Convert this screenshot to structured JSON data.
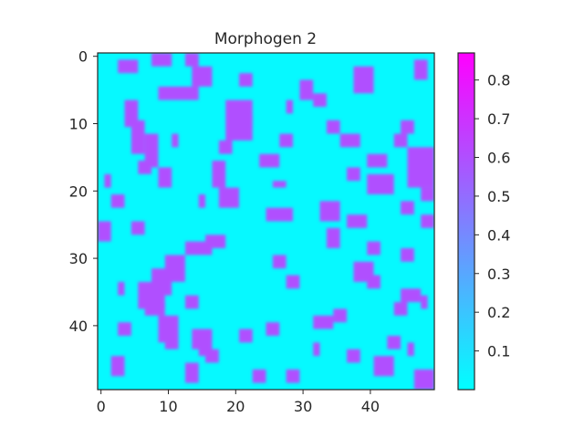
{
  "chart_data": {
    "type": "heatmap",
    "title": "Morphogen 2",
    "xlabel": "",
    "ylabel": "",
    "grid_size": [
      50,
      50
    ],
    "x_ticks": [
      0,
      10,
      20,
      30,
      40
    ],
    "y_ticks": [
      0,
      10,
      20,
      30,
      40
    ],
    "xlim": [
      -0.5,
      49.5
    ],
    "ylim": [
      49.5,
      -0.5
    ],
    "y_axis_inverted": true,
    "grid": false,
    "colormap": "cool",
    "colormap_endpoints": [
      "#00ffff",
      "#ff00ff"
    ],
    "value_range": [
      0.0,
      0.87
    ],
    "low_value": 0.02,
    "high_value": 0.6,
    "colorbar_ticks": [
      "0.1",
      "0.2",
      "0.3",
      "0.4",
      "0.5",
      "0.6",
      "0.7",
      "0.8"
    ],
    "colorbar_tick_values": [
      0.1,
      0.2,
      0.3,
      0.4,
      0.5,
      0.6,
      0.7,
      0.8
    ],
    "high_regions_approx": [
      [
        0,
        8,
        2,
        3
      ],
      [
        0,
        13,
        2,
        2
      ],
      [
        1,
        3,
        2,
        3
      ],
      [
        5,
        9,
        2,
        6
      ],
      [
        2,
        14,
        3,
        3
      ],
      [
        7,
        28,
        2,
        1
      ],
      [
        9,
        20,
        2,
        3
      ],
      [
        4,
        30,
        3,
        2
      ],
      [
        2,
        38,
        4,
        3
      ],
      [
        1,
        47,
        3,
        2
      ],
      [
        6,
        32,
        2,
        2
      ],
      [
        7,
        4,
        4,
        2
      ],
      [
        10,
        5,
        5,
        2
      ],
      [
        12,
        7,
        5,
        2
      ],
      [
        12,
        11,
        2,
        1
      ],
      [
        16,
        6,
        2,
        2
      ],
      [
        7,
        19,
        6,
        4
      ],
      [
        13,
        18,
        2,
        2
      ],
      [
        15,
        24,
        2,
        3
      ],
      [
        12,
        27,
        2,
        2
      ],
      [
        10,
        34,
        2,
        2
      ],
      [
        12,
        36,
        2,
        3
      ],
      [
        15,
        40,
        2,
        3
      ],
      [
        18,
        40,
        3,
        4
      ],
      [
        14,
        46,
        6,
        4
      ],
      [
        17,
        9,
        3,
        2
      ],
      [
        16,
        17,
        4,
        2
      ],
      [
        20,
        18,
        3,
        3
      ],
      [
        21,
        15,
        2,
        1
      ],
      [
        23,
        25,
        2,
        4
      ],
      [
        22,
        33,
        3,
        3
      ],
      [
        26,
        34,
        3,
        2
      ],
      [
        24,
        37,
        2,
        3
      ],
      [
        22,
        45,
        2,
        2
      ],
      [
        24,
        48,
        2,
        2
      ],
      [
        25,
        0,
        3,
        2
      ],
      [
        25,
        5,
        2,
        2
      ],
      [
        27,
        16,
        2,
        3
      ],
      [
        28,
        13,
        2,
        4
      ],
      [
        30,
        10,
        4,
        3
      ],
      [
        32,
        8,
        4,
        3
      ],
      [
        34,
        6,
        4,
        4
      ],
      [
        37,
        7,
        2,
        3
      ],
      [
        34,
        3,
        2,
        1
      ],
      [
        36,
        13,
        2,
        2
      ],
      [
        39,
        9,
        4,
        3
      ],
      [
        42,
        10,
        2,
        2
      ],
      [
        41,
        14,
        3,
        3
      ],
      [
        43,
        15,
        2,
        2
      ],
      [
        41,
        21,
        2,
        2
      ],
      [
        40,
        25,
        2,
        2
      ],
      [
        30,
        26,
        2,
        2
      ],
      [
        31,
        38,
        3,
        3
      ],
      [
        33,
        40,
        2,
        2
      ],
      [
        35,
        45,
        2,
        3
      ],
      [
        37,
        44,
        2,
        2
      ],
      [
        39,
        32,
        2,
        3
      ],
      [
        38,
        35,
        2,
        2
      ],
      [
        42,
        43,
        2,
        2
      ],
      [
        43,
        46,
        2,
        1
      ],
      [
        45,
        2,
        3,
        2
      ],
      [
        46,
        13,
        3,
        2
      ],
      [
        47,
        23,
        2,
        2
      ],
      [
        47,
        28,
        2,
        2
      ],
      [
        45,
        41,
        3,
        3
      ],
      [
        47,
        47,
        3,
        3
      ],
      [
        43,
        32,
        2,
        1
      ],
      [
        29,
        45,
        2,
        2
      ],
      [
        18,
        1,
        2,
        1
      ],
      [
        12,
        44,
        2,
        2
      ],
      [
        20,
        48,
        2,
        2
      ],
      [
        36,
        48,
        2,
        1
      ],
      [
        44,
        37,
        2,
        2
      ],
      [
        3,
        21,
        2,
        2
      ],
      [
        19,
        26,
        1,
        2
      ],
      [
        28,
        40,
        2,
        2
      ],
      [
        40,
        3,
        2,
        2
      ],
      [
        44,
        16,
        2,
        2
      ],
      [
        21,
        2,
        2,
        2
      ],
      [
        10,
        45,
        2,
        2
      ],
      [
        33,
        28,
        2,
        2
      ],
      [
        17,
        37,
        2,
        2
      ]
    ]
  }
}
